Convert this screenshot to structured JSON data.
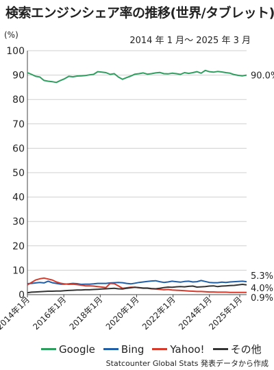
{
  "title": "検索エンジンシェア率の推移(世界/タブレット)",
  "unit": "(%)",
  "period": "2014 年 1 月〜 2025 年 3 月",
  "source": "Statcounter Global Stats 発表データから作成",
  "chart_data": {
    "type": "line",
    "ylim": [
      0,
      100
    ],
    "yticks": [
      0,
      10,
      20,
      30,
      40,
      50,
      60,
      70,
      80,
      90,
      100
    ],
    "xticks": [
      "2014年1月",
      "2016年1月",
      "2018年1月",
      "2020年1月",
      "2022年1月",
      "2024年1月",
      "2025年1月"
    ],
    "grid": true,
    "legend_position": "bottom",
    "series": [
      {
        "name": "Google",
        "color": "#2e9e5f",
        "end_label": "90.0%",
        "values": [
          91.0,
          90.3,
          89.5,
          89.2,
          87.8,
          87.5,
          87.3,
          87.0,
          87.8,
          88.5,
          89.5,
          89.3,
          89.6,
          89.7,
          89.8,
          90.1,
          90.3,
          91.4,
          91.2,
          91.0,
          90.3,
          90.6,
          89.2,
          88.3,
          89.0,
          89.6,
          90.4,
          90.6,
          90.9,
          90.4,
          90.6,
          90.9,
          91.1,
          90.6,
          90.5,
          90.8,
          90.6,
          90.3,
          91.0,
          90.7,
          91.0,
          91.4,
          90.8,
          91.9,
          91.4,
          91.2,
          91.5,
          91.3,
          91.0,
          90.8,
          90.2,
          89.9,
          89.7,
          90.0
        ]
      },
      {
        "name": "Bing",
        "color": "#1f5fa8",
        "end_label": "5.3%",
        "values": [
          4.5,
          4.6,
          4.8,
          5.0,
          4.8,
          5.5,
          4.9,
          4.6,
          4.3,
          4.3,
          4.4,
          4.6,
          4.5,
          4.2,
          4.3,
          4.3,
          4.4,
          4.6,
          4.6,
          4.6,
          4.8,
          4.9,
          5.0,
          4.9,
          4.6,
          4.4,
          4.7,
          5.0,
          5.2,
          5.4,
          5.6,
          5.7,
          5.3,
          5.0,
          5.2,
          5.5,
          5.3,
          5.1,
          5.4,
          5.5,
          5.2,
          5.3,
          5.8,
          5.4,
          5.0,
          4.9,
          4.9,
          5.1,
          5.0,
          5.2,
          5.3,
          5.4,
          5.5,
          5.3
        ]
      },
      {
        "name": "Yahoo!",
        "color": "#d63a2a",
        "end_label": "0.9%",
        "values": [
          4.0,
          5.0,
          6.0,
          6.5,
          6.8,
          6.4,
          6.0,
          5.2,
          4.7,
          4.4,
          4.2,
          4.3,
          4.1,
          3.9,
          3.6,
          3.6,
          3.5,
          3.3,
          3.1,
          2.9,
          4.6,
          4.5,
          3.6,
          2.6,
          2.8,
          3.0,
          3.0,
          2.8,
          2.6,
          2.6,
          2.4,
          2.3,
          2.2,
          2.0,
          2.1,
          1.9,
          1.8,
          1.7,
          1.6,
          1.5,
          1.4,
          1.3,
          1.3,
          1.2,
          1.1,
          1.1,
          1.0,
          1.0,
          1.0,
          0.9,
          0.9,
          0.9,
          0.9,
          0.9
        ]
      },
      {
        "name": "その他",
        "color": "#333333",
        "end_label": "4.0%",
        "values": [
          0.8,
          1.0,
          1.1,
          1.2,
          1.3,
          1.4,
          1.4,
          1.5,
          1.5,
          1.6,
          1.7,
          1.8,
          1.9,
          1.9,
          2.0,
          2.0,
          2.1,
          2.2,
          2.3,
          2.4,
          2.5,
          2.6,
          2.4,
          2.3,
          2.6,
          2.8,
          3.0,
          2.9,
          2.7,
          2.7,
          2.5,
          2.4,
          2.6,
          2.9,
          3.1,
          3.0,
          3.2,
          3.3,
          3.2,
          3.4,
          3.5,
          3.1,
          3.2,
          3.3,
          3.5,
          3.6,
          3.3,
          3.5,
          3.6,
          3.7,
          3.8,
          4.0,
          4.2,
          4.0
        ]
      }
    ]
  }
}
